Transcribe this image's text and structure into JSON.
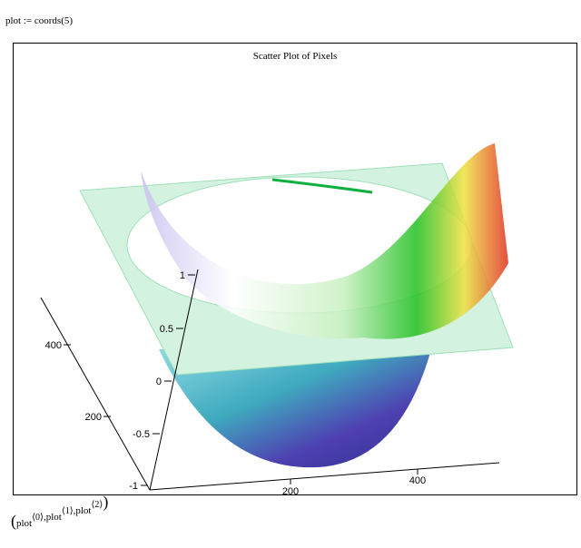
{
  "header": {
    "formula": "plot := coords(5)"
  },
  "plot": {
    "title": "Scatter Plot of Pixels",
    "z_ticks": [
      "1",
      "0.5",
      "0",
      "-0.5",
      "-1"
    ],
    "y_ticks": [
      "400",
      "200"
    ],
    "x_ticks": [
      "200",
      "400"
    ]
  },
  "footer": {
    "open": "(",
    "close": ")",
    "separator": ",",
    "items": [
      {
        "name": "plot",
        "index": "⟨0⟩"
      },
      {
        "name": "plot",
        "index": "⟨1⟩"
      },
      {
        "name": "plot",
        "index": "⟨2⟩"
      }
    ]
  }
}
